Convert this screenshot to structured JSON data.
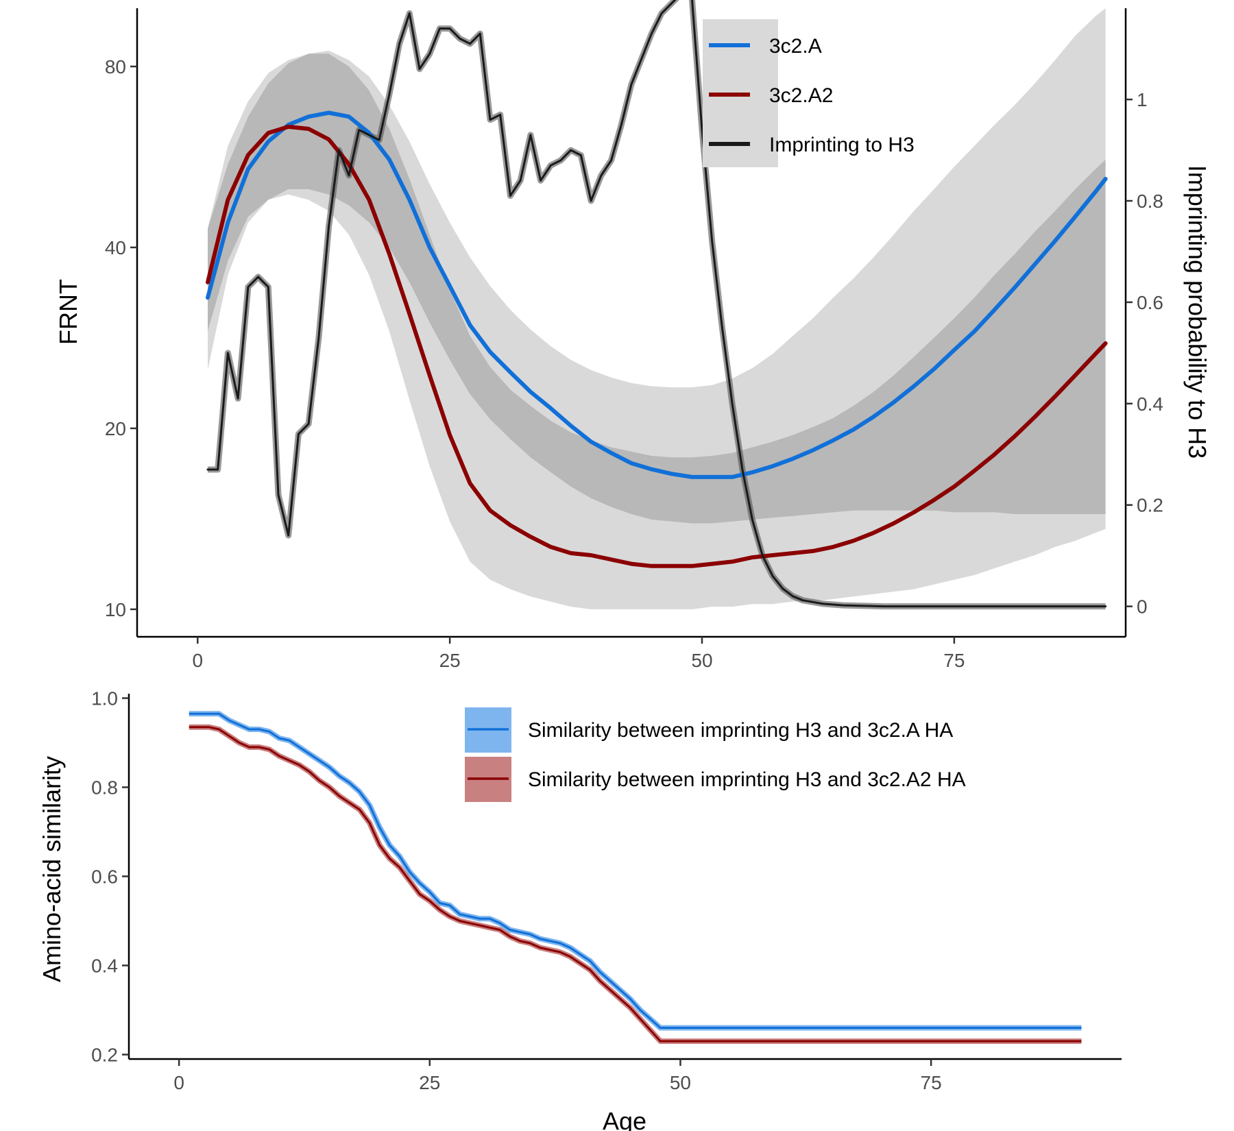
{
  "chart_data": [
    {
      "type": "line",
      "xlabel": "",
      "ylabel": "FRNT",
      "y2label": "Imprinting probability to H3",
      "xlim": [
        -6,
        92
      ],
      "xticks": [
        0,
        25,
        50,
        75
      ],
      "xtick_labels": [
        "0",
        "25",
        "50",
        "75"
      ],
      "yscale": "log",
      "ylim": [
        9,
        100
      ],
      "yticks": [
        10,
        20,
        40,
        80
      ],
      "ytick_labels": [
        "10",
        "20",
        "40",
        "80"
      ],
      "y2lim": [
        -0.06,
        1.18
      ],
      "y2ticks": [
        0,
        0.2,
        0.4,
        0.6,
        0.8,
        1
      ],
      "y2tick_labels": [
        "0",
        "0.2",
        "0.4",
        "0.6",
        "0.8",
        "1"
      ],
      "grid": false,
      "legend_position": "top-right",
      "legend": [
        {
          "label": "3c2.A",
          "color": "#1170d8"
        },
        {
          "label": "3c2.A2",
          "color": "#8b0000"
        },
        {
          "label": "Imprinting to H3",
          "color": "#1a1a1a"
        }
      ],
      "series": [
        {
          "name": "3c2.A",
          "axis": "left",
          "color": "#1170d8",
          "x": [
            1,
            3,
            5,
            7,
            9,
            11,
            13,
            15,
            17,
            19,
            21,
            23,
            25,
            27,
            29,
            31,
            33,
            35,
            37,
            39,
            41,
            43,
            45,
            47,
            49,
            51,
            53,
            55,
            57,
            59,
            61,
            63,
            65,
            67,
            69,
            71,
            73,
            75,
            77,
            79,
            81,
            83,
            85,
            87,
            89,
            90
          ],
          "y": [
            33,
            44,
            54,
            60,
            64,
            66,
            67,
            66,
            62,
            56,
            48,
            40,
            34.5,
            29.7,
            26.8,
            24.8,
            23.0,
            21.6,
            20.2,
            19.0,
            18.2,
            17.5,
            17.1,
            16.8,
            16.6,
            16.6,
            16.6,
            16.9,
            17.3,
            17.8,
            18.4,
            19.1,
            19.9,
            20.9,
            22.1,
            23.5,
            25.1,
            27.0,
            29.0,
            31.5,
            34.3,
            37.5,
            41.0,
            45.0,
            49.5,
            52.0
          ],
          "ci_upper": [
            43,
            55,
            66,
            75,
            81,
            84,
            85,
            82,
            77,
            69,
            60,
            51,
            44,
            38.5,
            34.5,
            31.5,
            29.2,
            27.4,
            26.0,
            25.0,
            24.3,
            23.8,
            23.5,
            23.4,
            23.4,
            23.6,
            24.2,
            25.2,
            26.6,
            28.5,
            30.5,
            33,
            35.5,
            38.5,
            42,
            46,
            50,
            54.5,
            59,
            64,
            69,
            75,
            82,
            90,
            97,
            100
          ],
          "ci_lower": [
            25,
            36,
            44,
            48,
            50,
            50,
            49,
            47,
            44,
            40,
            35,
            30,
            26,
            22.8,
            20.7,
            19.2,
            17.9,
            16.9,
            16.0,
            15.3,
            14.8,
            14.4,
            14.1,
            14.0,
            13.9,
            13.9,
            14.0,
            14.1,
            14.2,
            14.3,
            14.4,
            14.5,
            14.6,
            14.6,
            14.6,
            14.6,
            14.6,
            14.5,
            14.5,
            14.5,
            14.4,
            14.4,
            14.4,
            14.4,
            14.4,
            14.4
          ]
        },
        {
          "name": "3c2.A2",
          "axis": "left",
          "color": "#8b0000",
          "x": [
            1,
            3,
            5,
            7,
            9,
            11,
            13,
            15,
            17,
            19,
            21,
            23,
            25,
            27,
            29,
            31,
            33,
            35,
            37,
            39,
            41,
            43,
            45,
            47,
            49,
            51,
            53,
            55,
            57,
            59,
            61,
            63,
            65,
            67,
            69,
            71,
            73,
            75,
            77,
            79,
            81,
            83,
            85,
            87,
            89,
            90
          ],
          "y": [
            35,
            48,
            57,
            62,
            63.5,
            63,
            60.5,
            55,
            48,
            39,
            31,
            24.5,
            19.5,
            16.2,
            14.6,
            13.8,
            13.2,
            12.7,
            12.4,
            12.3,
            12.1,
            11.9,
            11.8,
            11.8,
            11.8,
            11.9,
            12.0,
            12.2,
            12.3,
            12.4,
            12.5,
            12.7,
            13.0,
            13.4,
            13.9,
            14.5,
            15.2,
            16.0,
            17.0,
            18.1,
            19.4,
            20.9,
            22.6,
            24.5,
            26.6,
            27.7
          ],
          "ci_upper": [
            43,
            59,
            70,
            78,
            82,
            84,
            84,
            80,
            73,
            63,
            52,
            42,
            34,
            28.5,
            25.3,
            23.2,
            21.8,
            20.6,
            19.7,
            19.1,
            18.6,
            18.3,
            18.0,
            17.9,
            17.9,
            18.0,
            18.2,
            18.6,
            19.0,
            19.5,
            20.1,
            20.8,
            21.8,
            23,
            24.5,
            26.3,
            28.3,
            30.5,
            33,
            36,
            39,
            42.5,
            46,
            50,
            54,
            56
          ],
          "ci_lower": [
            29,
            38,
            45,
            48,
            49,
            48,
            46,
            42,
            36,
            29,
            22.3,
            17.3,
            14.0,
            12.0,
            11.2,
            10.8,
            10.5,
            10.3,
            10.1,
            10.0,
            10.0,
            10.0,
            10.0,
            10.0,
            10.0,
            10.1,
            10.1,
            10.2,
            10.2,
            10.3,
            10.3,
            10.4,
            10.5,
            10.6,
            10.7,
            10.8,
            11.0,
            11.2,
            11.4,
            11.7,
            12.0,
            12.3,
            12.7,
            13.0,
            13.4,
            13.6
          ]
        },
        {
          "name": "Imprinting to H3",
          "axis": "right",
          "color": "#1a1a1a",
          "x": [
            1,
            2,
            3,
            4,
            5,
            6,
            7,
            8,
            9,
            10,
            11,
            12,
            13,
            14,
            15,
            16,
            17,
            18,
            19,
            20,
            21,
            22,
            23,
            24,
            25,
            26,
            27,
            28,
            29,
            30,
            31,
            32,
            33,
            34,
            35,
            36,
            37,
            38,
            39,
            40,
            41,
            42,
            43,
            44,
            45,
            46,
            47,
            48,
            49,
            50,
            51,
            52,
            53,
            54,
            55,
            56,
            57,
            58,
            59,
            60,
            62,
            64,
            66,
            68,
            70,
            75,
            80,
            85,
            90
          ],
          "y": [
            0.27,
            0.27,
            0.5,
            0.41,
            0.63,
            0.65,
            0.63,
            0.22,
            0.14,
            0.34,
            0.36,
            0.53,
            0.75,
            0.9,
            0.85,
            0.94,
            0.93,
            0.92,
            1.01,
            1.11,
            1.17,
            1.06,
            1.09,
            1.14,
            1.14,
            1.12,
            1.11,
            1.13,
            0.96,
            0.97,
            0.81,
            0.84,
            0.93,
            0.84,
            0.87,
            0.88,
            0.9,
            0.89,
            0.8,
            0.85,
            0.88,
            0.95,
            1.03,
            1.08,
            1.13,
            1.17,
            1.19,
            1.21,
            1.2,
            0.94,
            0.72,
            0.55,
            0.4,
            0.27,
            0.17,
            0.1,
            0.06,
            0.035,
            0.02,
            0.012,
            0.005,
            0.002,
            0.001,
            0,
            0,
            0,
            0,
            0,
            0
          ]
        }
      ]
    },
    {
      "type": "line",
      "xlabel": "Age",
      "ylabel": "Amino-acid similarity",
      "xlim": [
        -5,
        94
      ],
      "xticks": [
        0,
        25,
        50,
        75
      ],
      "xtick_labels": [
        "0",
        "25",
        "50",
        "75"
      ],
      "ylim": [
        0.19,
        1.01
      ],
      "yticks": [
        0.2,
        0.4,
        0.6,
        0.8,
        1.0
      ],
      "ytick_labels": [
        "0.2",
        "0.4",
        "0.6",
        "0.8",
        "1.0"
      ],
      "grid": false,
      "legend_position": "top-right",
      "legend": [
        {
          "label": "Similarity between imprinting H3 and 3c2.A HA",
          "color": "#1170d8",
          "fill": "#7fb5ee"
        },
        {
          "label": "Similarity between imprinting H3 and 3c2.A2 HA",
          "color": "#8b0000",
          "fill": "#c98080"
        }
      ],
      "series": [
        {
          "name": "Similarity between imprinting H3 and 3c2.A HA",
          "color": "#1170d8",
          "x": [
            1,
            2,
            3,
            4,
            5,
            6,
            7,
            8,
            9,
            10,
            11,
            12,
            13,
            14,
            15,
            16,
            17,
            18,
            19,
            20,
            21,
            22,
            23,
            24,
            25,
            26,
            27,
            28,
            29,
            30,
            31,
            32,
            33,
            34,
            35,
            36,
            37,
            38,
            39,
            40,
            41,
            42,
            43,
            44,
            45,
            46,
            47,
            48,
            49,
            50,
            60,
            70,
            80,
            90
          ],
          "y": [
            0.965,
            0.965,
            0.965,
            0.965,
            0.95,
            0.94,
            0.93,
            0.93,
            0.925,
            0.91,
            0.905,
            0.89,
            0.875,
            0.86,
            0.845,
            0.825,
            0.81,
            0.79,
            0.76,
            0.71,
            0.67,
            0.645,
            0.61,
            0.585,
            0.565,
            0.54,
            0.535,
            0.515,
            0.51,
            0.505,
            0.505,
            0.495,
            0.48,
            0.475,
            0.47,
            0.46,
            0.455,
            0.45,
            0.44,
            0.425,
            0.41,
            0.385,
            0.365,
            0.345,
            0.325,
            0.3,
            0.28,
            0.26,
            0.26,
            0.26,
            0.26,
            0.26,
            0.26,
            0.26
          ]
        },
        {
          "name": "Similarity between imprinting H3 and 3c2.A2 HA",
          "color": "#8b0000",
          "x": [
            1,
            2,
            3,
            4,
            5,
            6,
            7,
            8,
            9,
            10,
            11,
            12,
            13,
            14,
            15,
            16,
            17,
            18,
            19,
            20,
            21,
            22,
            23,
            24,
            25,
            26,
            27,
            28,
            29,
            30,
            31,
            32,
            33,
            34,
            35,
            36,
            37,
            38,
            39,
            40,
            41,
            42,
            43,
            44,
            45,
            46,
            47,
            48,
            49,
            50,
            60,
            70,
            80,
            90
          ],
          "y": [
            0.935,
            0.935,
            0.935,
            0.93,
            0.915,
            0.9,
            0.89,
            0.89,
            0.885,
            0.87,
            0.86,
            0.85,
            0.835,
            0.815,
            0.8,
            0.78,
            0.765,
            0.75,
            0.72,
            0.67,
            0.64,
            0.62,
            0.59,
            0.56,
            0.545,
            0.525,
            0.51,
            0.5,
            0.495,
            0.49,
            0.485,
            0.48,
            0.465,
            0.455,
            0.45,
            0.44,
            0.435,
            0.43,
            0.42,
            0.405,
            0.39,
            0.365,
            0.345,
            0.325,
            0.305,
            0.28,
            0.255,
            0.23,
            0.23,
            0.23,
            0.23,
            0.23,
            0.23,
            0.23
          ]
        }
      ]
    }
  ]
}
